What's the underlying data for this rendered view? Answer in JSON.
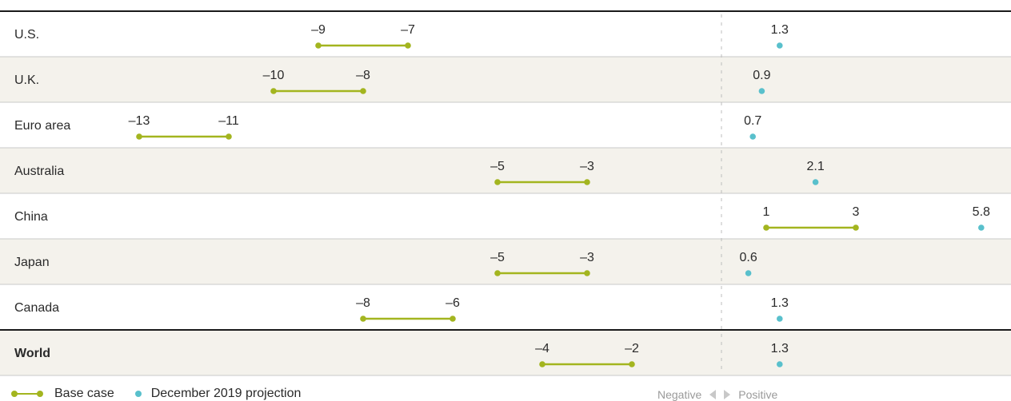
{
  "colors": {
    "base_case": "#a3b51f",
    "projection": "#59c0cc",
    "row_shade": "#f4f2ec",
    "divider": "#bdbdbd",
    "rule_dark": "#1a1a1a"
  },
  "legend": {
    "base_case_label": "Base case",
    "projection_label": "December 2019 projection"
  },
  "direction": {
    "negative_label": "Negative",
    "positive_label": "Positive"
  },
  "chart_data": {
    "type": "range_dot",
    "x_domain": [
      -14.5,
      6
    ],
    "series": [
      {
        "name": "Base case",
        "kind": "range"
      },
      {
        "name": "December 2019 projection",
        "kind": "point"
      }
    ],
    "rows": [
      {
        "label": "U.S.",
        "base_low": -9,
        "base_high": -7,
        "base_low_label": "–9",
        "base_high_label": "–7",
        "projection": 1.3,
        "projection_label": "1.3"
      },
      {
        "label": "U.K.",
        "base_low": -10,
        "base_high": -8,
        "base_low_label": "–10",
        "base_high_label": "–8",
        "projection": 0.9,
        "projection_label": "0.9"
      },
      {
        "label": "Euro area",
        "base_low": -13,
        "base_high": -11,
        "base_low_label": "–13",
        "base_high_label": "–11",
        "projection": 0.7,
        "projection_label": "0.7"
      },
      {
        "label": "Australia",
        "base_low": -5,
        "base_high": -3,
        "base_low_label": "–5",
        "base_high_label": "–3",
        "projection": 2.1,
        "projection_label": "2.1"
      },
      {
        "label": "China",
        "base_low": 1,
        "base_high": 3,
        "base_low_label": "1",
        "base_high_label": "3",
        "projection": 5.8,
        "projection_label": "5.8"
      },
      {
        "label": "Japan",
        "base_low": -5,
        "base_high": -3,
        "base_low_label": "–5",
        "base_high_label": "–3",
        "projection": 0.6,
        "projection_label": "0.6"
      },
      {
        "label": "Canada",
        "base_low": -8,
        "base_high": -6,
        "base_low_label": "–8",
        "base_high_label": "–6",
        "projection": 1.3,
        "projection_label": "1.3"
      },
      {
        "label": "World",
        "base_low": -4,
        "base_high": -2,
        "base_low_label": "–4",
        "base_high_label": "–2",
        "projection": 1.3,
        "projection_label": "1.3",
        "emphasis": true
      }
    ]
  }
}
